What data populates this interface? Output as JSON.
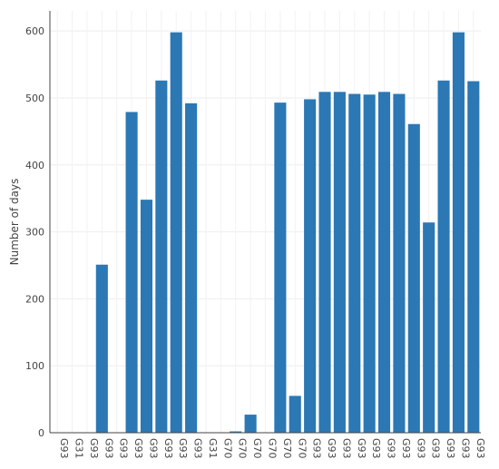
{
  "chart_data": {
    "type": "bar",
    "ylabel": "Number of days",
    "xlabel": "",
    "ylim": [
      0,
      630
    ],
    "yticks": [
      0,
      100,
      200,
      300,
      400,
      500,
      600
    ],
    "grid": true,
    "bar_color": "#2b78b5",
    "categories": [
      "G93",
      "G31",
      "G93",
      "G93",
      "G93",
      "G93",
      "G93",
      "G93",
      "G93",
      "G93",
      "G31",
      "G70",
      "G70",
      "G70",
      "G70",
      "G70",
      "G70",
      "G93",
      "G93",
      "G93",
      "G93",
      "G93",
      "G93",
      "G93",
      "G93",
      "G93",
      "G93",
      "G93",
      "G93"
    ],
    "values": [
      0,
      0,
      0,
      251,
      0,
      479,
      348,
      526,
      598,
      492,
      0,
      0,
      2,
      27,
      0,
      493,
      55,
      498,
      509,
      509,
      506,
      505,
      509,
      506,
      461,
      314,
      526,
      598,
      525
    ]
  }
}
